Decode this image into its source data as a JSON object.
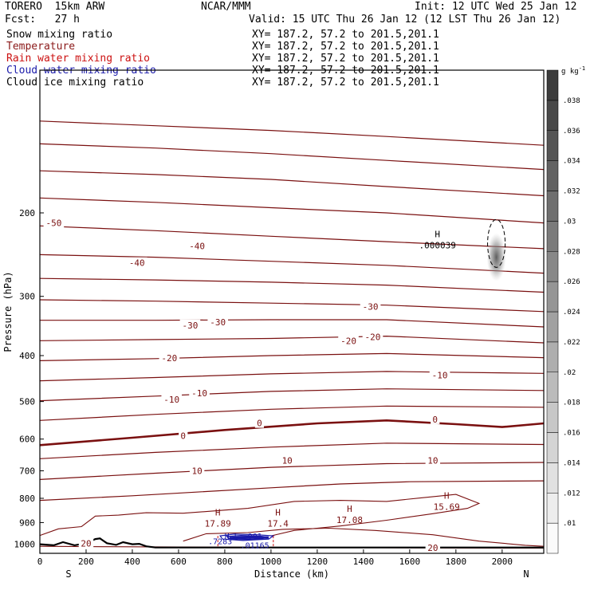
{
  "header": {
    "model": "TORERO  15km ARW",
    "org": "NCAR/MMM",
    "init": "Init: 12 UTC Wed 25 Jan 12",
    "fcst": "Fcst:   27 h",
    "valid": "Valid: 15 UTC Thu 26 Jan 12 (12 LST Thu 26 Jan 12)"
  },
  "legend": [
    {
      "name": "Snow mixing ratio",
      "xy": "XY= 187.2, 57.2 to 201.5,201.1",
      "color": "#000000"
    },
    {
      "name": "Temperature",
      "xy": "XY= 187.2, 57.2 to 201.5,201.1",
      "color": "#8b1a1a"
    },
    {
      "name": "Rain water mixing ratio",
      "xy": "XY= 187.2, 57.2 to 201.5,201.1",
      "color": "#cc1111"
    },
    {
      "name": "Cloud water mixing ratio",
      "xy": "XY= 187.2, 57.2 to 201.5,201.1",
      "color": "#1a1aaa"
    },
    {
      "name": "Cloud ice mixing ratio",
      "xy": "XY= 187.2, 57.2 to 201.5,201.1",
      "color": "#000000"
    }
  ],
  "chart_data": {
    "type": "contour",
    "xlabel": "Distance (km)",
    "ylabel": "Pressure (hPa)",
    "x_ticks": [
      0,
      200,
      400,
      600,
      800,
      1000,
      1200,
      1400,
      1600,
      1800,
      2000
    ],
    "y_ticks": [
      200,
      300,
      400,
      500,
      600,
      700,
      800,
      900,
      1000
    ],
    "xlim": [
      0,
      2180
    ],
    "ylim": [
      1045,
      100
    ],
    "y_scale": "log",
    "direction_left": "S",
    "direction_right": "N",
    "colorbar": {
      "unit": "g kg",
      "unit_exp": "-1",
      "labels": [
        ".01",
        ".012",
        ".014",
        ".016",
        ".018",
        ".02",
        ".022",
        ".024",
        ".026",
        ".028",
        ".03",
        ".032",
        ".034",
        ".036",
        ".038"
      ]
    },
    "temperature_labels": [
      {
        "text": "-50",
        "x": 60,
        "p": 210
      },
      {
        "text": "-40",
        "x": 420,
        "p": 255
      },
      {
        "text": "-40",
        "x": 680,
        "p": 235
      },
      {
        "text": "-30",
        "x": 650,
        "p": 345
      },
      {
        "text": "-30",
        "x": 770,
        "p": 340
      },
      {
        "text": "-30",
        "x": 1430,
        "p": 315
      },
      {
        "text": "-20",
        "x": 560,
        "p": 405
      },
      {
        "text": "-20",
        "x": 1335,
        "p": 372
      },
      {
        "text": "-20",
        "x": 1440,
        "p": 365
      },
      {
        "text": "-10",
        "x": 570,
        "p": 495
      },
      {
        "text": "-10",
        "x": 690,
        "p": 480
      },
      {
        "text": "-10",
        "x": 1730,
        "p": 440
      },
      {
        "text": "0",
        "x": 620,
        "p": 590
      },
      {
        "text": "0",
        "x": 950,
        "p": 555
      },
      {
        "text": "0",
        "x": 1710,
        "p": 545
      },
      {
        "text": "10",
        "x": 680,
        "p": 700
      },
      {
        "text": "10",
        "x": 1070,
        "p": 665
      },
      {
        "text": "10",
        "x": 1700,
        "p": 665
      },
      {
        "text": "20",
        "x": 200,
        "p": 995
      },
      {
        "text": "20",
        "x": 1700,
        "p": 1017
      }
    ],
    "high_markers": [
      {
        "label": "H",
        "value": "17.89",
        "x": 770,
        "p": 910
      },
      {
        "label": "H",
        "value": "17.4",
        "x": 1030,
        "p": 910
      },
      {
        "label": "H",
        "value": "17.08",
        "x": 1340,
        "p": 895
      },
      {
        "label": "H",
        "value": "15.69",
        "x": 1760,
        "p": 840
      },
      {
        "label": "H",
        "value": ".000039",
        "x": 1720,
        "p": 236
      }
    ],
    "small_labels": [
      {
        "text": "H L",
        "x": 830,
        "p": 960,
        "color": "#1a1aaa"
      },
      {
        "text": ".001",
        "x": 920,
        "p": 960,
        "color": "#1a1aaa"
      },
      {
        "text": ".7283",
        "x": 780,
        "p": 985,
        "color": "#1a1aaa"
      },
      {
        "text": ".01165",
        "x": 930,
        "p": 1003,
        "color": "#1a1aaa"
      }
    ]
  }
}
